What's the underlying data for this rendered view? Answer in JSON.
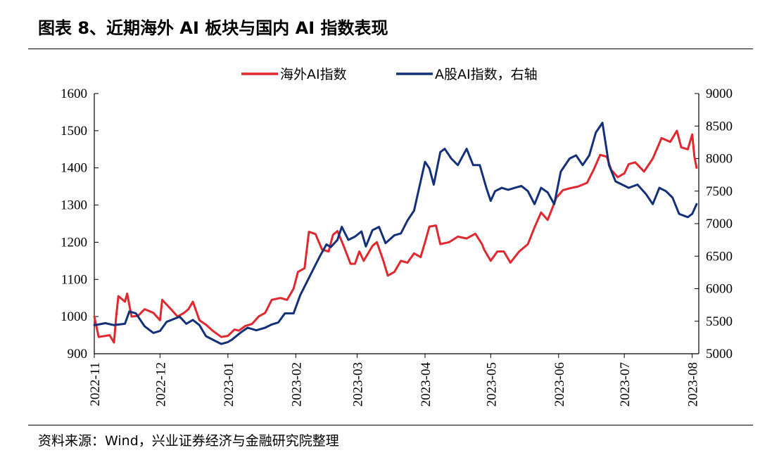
{
  "header": {
    "title": "图表 8、近期海外 AI 板块与国内 AI 指数表现"
  },
  "footer": {
    "source": "资料来源：Wind，兴业证券经济与金融研究院整理"
  },
  "colors": {
    "overseas": "#e0282e",
    "domestic": "#14307a"
  },
  "chart_data": {
    "type": "line",
    "title": "",
    "legend_position": "top-center",
    "grid": false,
    "x_range": [
      "2022-11-01",
      "2023-08-04"
    ],
    "x_ticks": [
      "2022-11",
      "2022-12",
      "2023-01",
      "2023-02",
      "2023-03",
      "2023-04",
      "2023-05",
      "2023-06",
      "2023-07",
      "2023-08"
    ],
    "y_left": {
      "range": [
        900,
        1600
      ],
      "ticks": [
        900,
        1000,
        1100,
        1200,
        1300,
        1400,
        1500,
        1600
      ]
    },
    "y_right": {
      "range": [
        5000,
        9000
      ],
      "ticks": [
        5000,
        5500,
        6000,
        6500,
        7000,
        7500,
        8000,
        8500,
        9000
      ]
    },
    "series": [
      {
        "name": "海外AI指数",
        "axis": "left",
        "color": "#e0282e",
        "points": [
          [
            "2022-11-01",
            1000
          ],
          [
            "2022-11-03",
            945
          ],
          [
            "2022-11-08",
            950
          ],
          [
            "2022-11-10",
            930
          ],
          [
            "2022-11-11",
            1000
          ],
          [
            "2022-11-12",
            1055
          ],
          [
            "2022-11-15",
            1040
          ],
          [
            "2022-11-16",
            1062
          ],
          [
            "2022-11-18",
            1000
          ],
          [
            "2022-11-21",
            1002
          ],
          [
            "2022-11-24",
            1020
          ],
          [
            "2022-11-28",
            1010
          ],
          [
            "2022-12-01",
            990
          ],
          [
            "2022-12-02",
            1045
          ],
          [
            "2022-12-06",
            1020
          ],
          [
            "2022-12-09",
            1000
          ],
          [
            "2022-12-12",
            1010
          ],
          [
            "2022-12-14",
            1020
          ],
          [
            "2022-12-16",
            1040
          ],
          [
            "2022-12-19",
            990
          ],
          [
            "2022-12-22",
            978
          ],
          [
            "2022-12-25",
            962
          ],
          [
            "2022-12-29",
            945
          ],
          [
            "2023-01-01",
            948
          ],
          [
            "2023-01-04",
            965
          ],
          [
            "2023-01-06",
            962
          ],
          [
            "2023-01-09",
            975
          ],
          [
            "2023-01-12",
            980
          ],
          [
            "2023-01-15",
            1000
          ],
          [
            "2023-01-18",
            1010
          ],
          [
            "2023-01-21",
            1045
          ],
          [
            "2023-01-25",
            1050
          ],
          [
            "2023-01-28",
            1045
          ],
          [
            "2023-01-31",
            1075
          ],
          [
            "2023-02-02",
            1120
          ],
          [
            "2023-02-05",
            1130
          ],
          [
            "2023-02-07",
            1228
          ],
          [
            "2023-02-10",
            1222
          ],
          [
            "2023-02-13",
            1180
          ],
          [
            "2023-02-16",
            1175
          ],
          [
            "2023-02-18",
            1220
          ],
          [
            "2023-02-20",
            1230
          ],
          [
            "2023-02-23",
            1188
          ],
          [
            "2023-02-26",
            1142
          ],
          [
            "2023-02-28",
            1142
          ],
          [
            "2023-03-02",
            1175
          ],
          [
            "2023-03-04",
            1150
          ],
          [
            "2023-03-08",
            1190
          ],
          [
            "2023-03-10",
            1200
          ],
          [
            "2023-03-13",
            1150
          ],
          [
            "2023-03-15",
            1110
          ],
          [
            "2023-03-18",
            1120
          ],
          [
            "2023-03-21",
            1150
          ],
          [
            "2023-03-24",
            1145
          ],
          [
            "2023-03-27",
            1170
          ],
          [
            "2023-03-30",
            1160
          ],
          [
            "2023-04-01",
            1200
          ],
          [
            "2023-04-03",
            1242
          ],
          [
            "2023-04-06",
            1245
          ],
          [
            "2023-04-08",
            1195
          ],
          [
            "2023-04-12",
            1200
          ],
          [
            "2023-04-16",
            1215
          ],
          [
            "2023-04-20",
            1210
          ],
          [
            "2023-04-24",
            1223
          ],
          [
            "2023-04-27",
            1195
          ],
          [
            "2023-04-28",
            1180
          ],
          [
            "2023-05-01",
            1150
          ],
          [
            "2023-05-04",
            1175
          ],
          [
            "2023-05-07",
            1175
          ],
          [
            "2023-05-10",
            1145
          ],
          [
            "2023-05-14",
            1175
          ],
          [
            "2023-05-18",
            1195
          ],
          [
            "2023-05-21",
            1240
          ],
          [
            "2023-05-24",
            1280
          ],
          [
            "2023-05-27",
            1260
          ],
          [
            "2023-05-31",
            1320
          ],
          [
            "2023-06-03",
            1340
          ],
          [
            "2023-06-06",
            1345
          ],
          [
            "2023-06-10",
            1350
          ],
          [
            "2023-06-14",
            1360
          ],
          [
            "2023-06-17",
            1395
          ],
          [
            "2023-06-20",
            1435
          ],
          [
            "2023-06-23",
            1430
          ],
          [
            "2023-06-25",
            1395
          ],
          [
            "2023-06-28",
            1375
          ],
          [
            "2023-07-01",
            1385
          ],
          [
            "2023-07-03",
            1410
          ],
          [
            "2023-07-06",
            1415
          ],
          [
            "2023-07-10",
            1390
          ],
          [
            "2023-07-14",
            1425
          ],
          [
            "2023-07-18",
            1480
          ],
          [
            "2023-07-22",
            1470
          ],
          [
            "2023-07-25",
            1500
          ],
          [
            "2023-07-27",
            1455
          ],
          [
            "2023-07-30",
            1450
          ],
          [
            "2023-08-01",
            1490
          ],
          [
            "2023-08-02",
            1430
          ],
          [
            "2023-08-03",
            1400
          ]
        ]
      },
      {
        "name": "A股AI指数，右轴",
        "axis": "right",
        "color": "#14307a",
        "points": [
          [
            "2022-11-01",
            5440
          ],
          [
            "2022-11-03",
            5450
          ],
          [
            "2022-11-06",
            5470
          ],
          [
            "2022-11-10",
            5440
          ],
          [
            "2022-11-15",
            5460
          ],
          [
            "2022-11-17",
            5650
          ],
          [
            "2022-11-20",
            5620
          ],
          [
            "2022-11-24",
            5420
          ],
          [
            "2022-11-28",
            5320
          ],
          [
            "2022-12-01",
            5350
          ],
          [
            "2022-12-04",
            5490
          ],
          [
            "2022-12-07",
            5530
          ],
          [
            "2022-12-10",
            5570
          ],
          [
            "2022-12-13",
            5460
          ],
          [
            "2022-12-16",
            5520
          ],
          [
            "2022-12-19",
            5440
          ],
          [
            "2022-12-22",
            5270
          ],
          [
            "2022-12-26",
            5200
          ],
          [
            "2022-12-29",
            5150
          ],
          [
            "2023-01-01",
            5180
          ],
          [
            "2023-01-03",
            5220
          ],
          [
            "2023-01-07",
            5330
          ],
          [
            "2023-01-10",
            5400
          ],
          [
            "2023-01-14",
            5360
          ],
          [
            "2023-01-18",
            5400
          ],
          [
            "2023-01-21",
            5450
          ],
          [
            "2023-01-24",
            5480
          ],
          [
            "2023-01-27",
            5620
          ],
          [
            "2023-01-31",
            5620
          ],
          [
            "2023-02-03",
            5900
          ],
          [
            "2023-02-06",
            6100
          ],
          [
            "2023-02-09",
            6300
          ],
          [
            "2023-02-12",
            6500
          ],
          [
            "2023-02-15",
            6680
          ],
          [
            "2023-02-17",
            6640
          ],
          [
            "2023-02-20",
            6750
          ],
          [
            "2023-02-22",
            6950
          ],
          [
            "2023-02-25",
            6750
          ],
          [
            "2023-02-28",
            6800
          ],
          [
            "2023-03-03",
            6880
          ],
          [
            "2023-03-05",
            6650
          ],
          [
            "2023-03-08",
            6900
          ],
          [
            "2023-03-11",
            6950
          ],
          [
            "2023-03-14",
            6700
          ],
          [
            "2023-03-18",
            6820
          ],
          [
            "2023-03-21",
            6850
          ],
          [
            "2023-03-24",
            7050
          ],
          [
            "2023-03-27",
            7200
          ],
          [
            "2023-03-29",
            7500
          ],
          [
            "2023-04-01",
            7950
          ],
          [
            "2023-04-03",
            7850
          ],
          [
            "2023-04-05",
            7600
          ],
          [
            "2023-04-08",
            8100
          ],
          [
            "2023-04-10",
            8150
          ],
          [
            "2023-04-13",
            8000
          ],
          [
            "2023-04-16",
            7900
          ],
          [
            "2023-04-20",
            8150
          ],
          [
            "2023-04-23",
            7900
          ],
          [
            "2023-04-26",
            7900
          ],
          [
            "2023-04-29",
            7550
          ],
          [
            "2023-05-01",
            7350
          ],
          [
            "2023-05-03",
            7500
          ],
          [
            "2023-05-06",
            7550
          ],
          [
            "2023-05-09",
            7520
          ],
          [
            "2023-05-12",
            7550
          ],
          [
            "2023-05-15",
            7580
          ],
          [
            "2023-05-18",
            7500
          ],
          [
            "2023-05-21",
            7300
          ],
          [
            "2023-05-24",
            7550
          ],
          [
            "2023-05-27",
            7480
          ],
          [
            "2023-05-30",
            7300
          ],
          [
            "2023-06-02",
            7800
          ],
          [
            "2023-06-06",
            8000
          ],
          [
            "2023-06-09",
            8050
          ],
          [
            "2023-06-12",
            7900
          ],
          [
            "2023-06-15",
            8050
          ],
          [
            "2023-06-18",
            8400
          ],
          [
            "2023-06-21",
            8550
          ],
          [
            "2023-06-24",
            7900
          ],
          [
            "2023-06-27",
            7650
          ],
          [
            "2023-06-30",
            7600
          ],
          [
            "2023-07-03",
            7550
          ],
          [
            "2023-07-07",
            7600
          ],
          [
            "2023-07-11",
            7450
          ],
          [
            "2023-07-14",
            7300
          ],
          [
            "2023-07-17",
            7550
          ],
          [
            "2023-07-20",
            7500
          ],
          [
            "2023-07-23",
            7400
          ],
          [
            "2023-07-26",
            7150
          ],
          [
            "2023-07-30",
            7100
          ],
          [
            "2023-08-01",
            7150
          ],
          [
            "2023-08-03",
            7300
          ]
        ]
      }
    ]
  }
}
